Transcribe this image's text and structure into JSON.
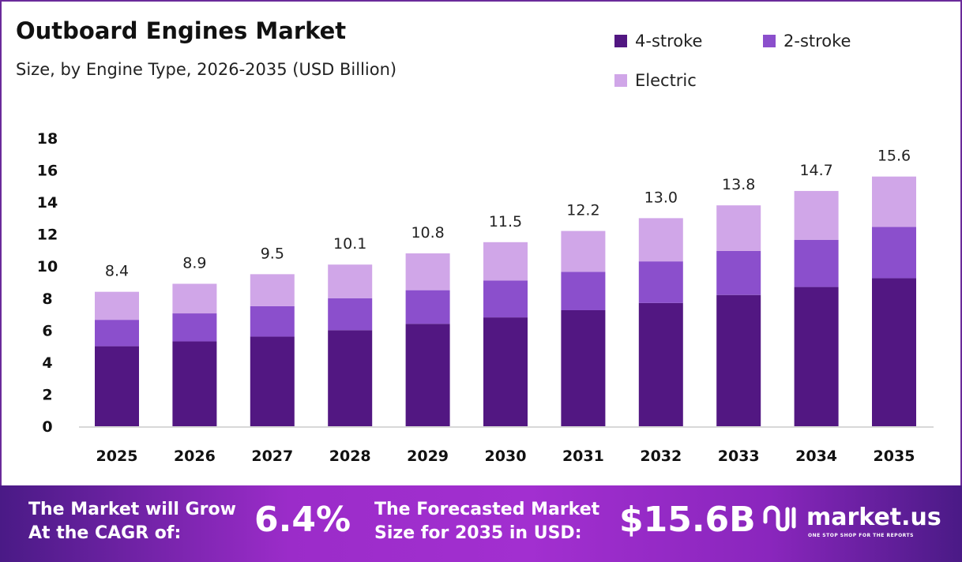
{
  "chart_data": {
    "type": "bar",
    "stacked": true,
    "title": "Outboard Engines Market",
    "subtitle": "Size, by Engine Type, 2026-2035 (USD Billion)",
    "categories": [
      "2025",
      "2026",
      "2027",
      "2028",
      "2029",
      "2030",
      "2031",
      "2032",
      "2033",
      "2034",
      "2035"
    ],
    "series": [
      {
        "name": "4-stroke",
        "color": "#521782",
        "values": [
          5.0,
          5.3,
          5.6,
          6.0,
          6.4,
          6.8,
          7.25,
          7.7,
          8.2,
          8.7,
          9.25
        ]
      },
      {
        "name": "2-stroke",
        "color": "#8b4fcc",
        "values": [
          1.65,
          1.75,
          1.9,
          2.0,
          2.1,
          2.3,
          2.4,
          2.6,
          2.75,
          2.95,
          3.2
        ]
      },
      {
        "name": "Electric",
        "color": "#d0a6e8",
        "values": [
          1.75,
          1.85,
          2.0,
          2.1,
          2.3,
          2.4,
          2.55,
          2.7,
          2.85,
          3.05,
          3.15
        ]
      }
    ],
    "totals": [
      "8.4",
      "8.9",
      "9.5",
      "10.1",
      "10.8",
      "11.5",
      "12.2",
      "13.0",
      "13.8",
      "14.7",
      "15.6"
    ],
    "yticks": [
      "0",
      "2",
      "4",
      "6",
      "8",
      "10",
      "12",
      "14",
      "16",
      "18"
    ],
    "ylim": [
      0,
      18
    ],
    "grid": false,
    "legend": "top-right"
  },
  "banner": {
    "cagr_label_1": "The Market will Grow",
    "cagr_label_2": "At the CAGR of:",
    "cagr_value": "6.4%",
    "forecast_label_1": "The Forecasted Market",
    "forecast_label_2": "Size for 2035 in USD:",
    "forecast_value": "$15.6B",
    "logo_text": "market.us",
    "logo_tagline": "ONE STOP SHOP FOR THE REPORTS"
  }
}
